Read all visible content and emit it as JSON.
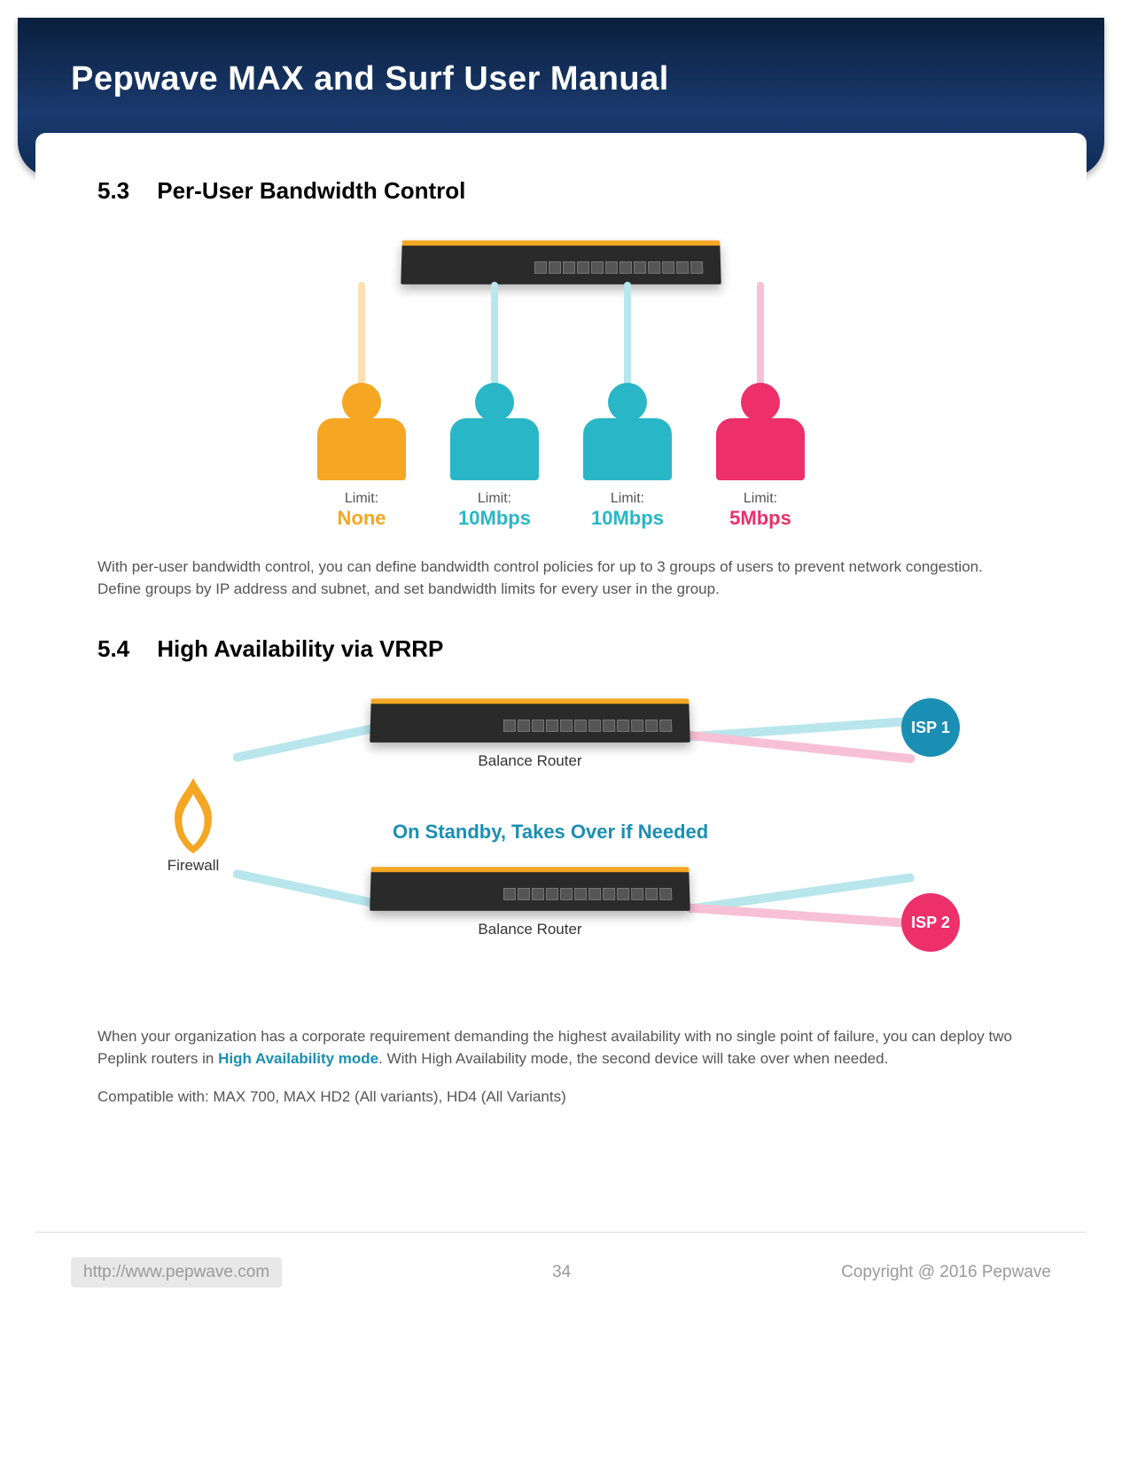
{
  "header": {
    "title": "Pepwave MAX and Surf User Manual"
  },
  "section53": {
    "number": "5.3",
    "title": "Per-User Bandwidth Control",
    "users": [
      {
        "color": "#f5a623",
        "stripe": "#fde0b3",
        "limit_label": "Limit:",
        "limit_value": "None",
        "value_color": "#f5a623"
      },
      {
        "color": "#29b6c6",
        "stripe": "#b8e6ec",
        "limit_label": "Limit:",
        "limit_value": "10Mbps",
        "value_color": "#29b6c6"
      },
      {
        "color": "#29b6c6",
        "stripe": "#b8e6ec",
        "limit_label": "Limit:",
        "limit_value": "10Mbps",
        "value_color": "#29b6c6"
      },
      {
        "color": "#ed2f6a",
        "stripe": "#f8c0d4",
        "limit_label": "Limit:",
        "limit_value": "5Mbps",
        "value_color": "#ed2f6a"
      }
    ],
    "body": "With per-user bandwidth control, you can define bandwidth control policies for up to 3 groups of users to prevent network congestion. Define groups by IP address and subnet, and set bandwidth limits for every user in the group."
  },
  "section54": {
    "number": "5.4",
    "title": "High Availability via VRRP",
    "firewall_label": "Firewall",
    "router_label": "Balance Router",
    "standby_text": "On Standby, Takes Over if Needed",
    "standby_color": "#1a8fb3",
    "isp1": {
      "label": "ISP 1",
      "color": "#1a8fb3"
    },
    "isp2": {
      "label": "ISP 2",
      "color": "#ed2f6a"
    },
    "wire_colors": {
      "teal": "#b8e6ec",
      "pink": "#f8c0d4",
      "firewall": "#f5a623"
    },
    "body_pre": "When your organization has a corporate requirement demanding the highest availability with no single point of failure, you can deploy two Peplink routers in ",
    "ha_link_text": "High Availability mode",
    "body_post": ". With High Availability mode, the second device will take over when needed.",
    "compatible": "Compatible with: MAX 700, MAX HD2 (All variants), HD4 (All Variants)"
  },
  "footer": {
    "url": "http://www.pepwave.com",
    "page": "34",
    "copyright": "Copyright @ 2016 Pepwave"
  }
}
